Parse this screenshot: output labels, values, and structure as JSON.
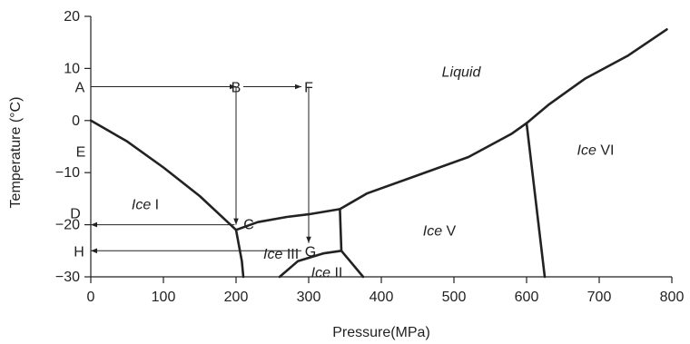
{
  "chart_data": {
    "type": "phase-diagram",
    "title": "",
    "xlabel": "Pressure(MPa)",
    "ylabel": "Temperature (°C)",
    "xlim": [
      0,
      800
    ],
    "ylim": [
      -30,
      20
    ],
    "x_ticks": [
      "0",
      "100",
      "200",
      "300",
      "400",
      "500",
      "600",
      "700",
      "800"
    ],
    "y_ticks": [
      "20",
      "10",
      "0",
      "-10",
      "-20",
      "-30"
    ],
    "regions": [
      {
        "italic": "Liquid",
        "roman": "",
        "x": 510,
        "y": 9.5
      },
      {
        "italic": "Ice",
        "roman": " I",
        "x": 75,
        "y": -16
      },
      {
        "italic": "Ice",
        "roman": " III",
        "x": 262,
        "y": -25.5
      },
      {
        "italic": "Ice",
        "roman": " II",
        "x": 325,
        "y": -29
      },
      {
        "italic": "Ice",
        "roman": " V",
        "x": 480,
        "y": -21
      },
      {
        "italic": "Ice",
        "roman": " VI",
        "x": 695,
        "y": -5.5
      }
    ],
    "phase_boundaries": [
      {
        "name": "liquid-ice-I",
        "points": [
          [
            0,
            0
          ],
          [
            50,
            -4
          ],
          [
            100,
            -9
          ],
          [
            150,
            -14.5
          ],
          [
            200,
            -21
          ]
        ]
      },
      {
        "name": "liquid-ice-III",
        "points": [
          [
            200,
            -21
          ],
          [
            230,
            -19.5
          ],
          [
            270,
            -18.5
          ],
          [
            300,
            -18
          ],
          [
            343,
            -17
          ]
        ]
      },
      {
        "name": "ice-III-ice-V",
        "points": [
          [
            343,
            -17
          ],
          [
            345,
            -25
          ]
        ]
      },
      {
        "name": "liquid-ice-V",
        "points": [
          [
            343,
            -17
          ],
          [
            380,
            -14
          ],
          [
            450,
            -10.5
          ],
          [
            520,
            -7
          ],
          [
            580,
            -2.5
          ],
          [
            600,
            -0.5
          ]
        ]
      },
      {
        "name": "liquid-ice-VI",
        "points": [
          [
            600,
            -0.5
          ],
          [
            630,
            3
          ],
          [
            680,
            8
          ],
          [
            740,
            12.5
          ],
          [
            793,
            17.5
          ]
        ]
      },
      {
        "name": "ice-V-ice-VI",
        "points": [
          [
            600,
            -0.5
          ],
          [
            625,
            -30
          ]
        ]
      },
      {
        "name": "ice-I-ice-III",
        "points": [
          [
            200,
            -21
          ],
          [
            208,
            -27
          ],
          [
            210,
            -30
          ]
        ]
      },
      {
        "name": "ice-III-ice-II",
        "points": [
          [
            260,
            -30
          ],
          [
            285,
            -27
          ],
          [
            320,
            -25.5
          ],
          [
            345,
            -25
          ]
        ]
      },
      {
        "name": "ice-II-ice-V",
        "points": [
          [
            345,
            -25
          ],
          [
            375,
            -30
          ]
        ]
      }
    ],
    "points": [
      {
        "label": "A",
        "x": 0,
        "y": 6.5
      },
      {
        "label": "B",
        "x": 200,
        "y": 6.5
      },
      {
        "label": "F",
        "x": 300,
        "y": 6.5
      },
      {
        "label": "E",
        "x": 0,
        "y": -2
      },
      {
        "label": "C",
        "x": 200,
        "y": -21
      },
      {
        "label": "D",
        "x": 0,
        "y": -20
      },
      {
        "label": "H",
        "x": 0,
        "y": -25
      },
      {
        "label": "G",
        "x": 300,
        "y": -25
      }
    ],
    "process_arrows": [
      {
        "name": "A-to-B",
        "from": [
          0,
          6.5
        ],
        "to": [
          200,
          6.5
        ]
      },
      {
        "name": "B-to-F",
        "from": [
          210,
          6.5
        ],
        "to": [
          290,
          6.5
        ]
      },
      {
        "name": "B-to-C",
        "from": [
          200,
          6.5
        ],
        "to": [
          200,
          -20
        ]
      },
      {
        "name": "C-to-D",
        "from": [
          198,
          -20
        ],
        "to": [
          0,
          -20
        ]
      },
      {
        "name": "F-to-G",
        "from": [
          300,
          6.5
        ],
        "to": [
          300,
          -23.5
        ]
      },
      {
        "name": "G-to-H",
        "from": [
          290,
          -25
        ],
        "to": [
          0,
          -25
        ]
      }
    ]
  }
}
